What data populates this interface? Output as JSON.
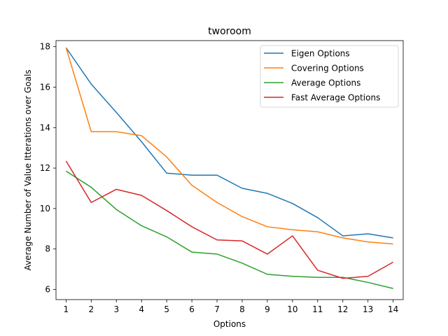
{
  "chart_data": {
    "type": "line",
    "title": "tworoom",
    "xlabel": "Options",
    "ylabel": "Average Number of Value Itterations over Goals",
    "x": [
      1,
      2,
      3,
      4,
      5,
      6,
      7,
      8,
      9,
      10,
      11,
      12,
      13,
      14
    ],
    "xlim": [
      0.6,
      14.4
    ],
    "ylim": [
      5.5,
      18.3
    ],
    "xticks": [
      1,
      2,
      3,
      4,
      5,
      6,
      7,
      8,
      9,
      10,
      11,
      12,
      13,
      14
    ],
    "yticks": [
      6,
      8,
      10,
      12,
      14,
      16,
      18
    ],
    "grid": false,
    "legend_position": "top-right",
    "series": [
      {
        "name": "Eigen Options",
        "color": "#1f77b4",
        "values": [
          17.95,
          16.15,
          14.75,
          13.3,
          11.75,
          11.65,
          11.65,
          11.0,
          10.75,
          10.25,
          9.55,
          8.65,
          8.75,
          8.55
        ]
      },
      {
        "name": "Covering Options",
        "color": "#ff7f0e",
        "values": [
          17.95,
          13.8,
          13.8,
          13.6,
          12.55,
          11.15,
          10.3,
          9.6,
          9.1,
          8.95,
          8.85,
          8.55,
          8.35,
          8.25
        ]
      },
      {
        "name": "Average Options",
        "color": "#2ca02c",
        "values": [
          11.85,
          11.05,
          9.95,
          9.15,
          8.6,
          7.85,
          7.75,
          7.3,
          6.75,
          6.65,
          6.6,
          6.6,
          6.35,
          6.05
        ]
      },
      {
        "name": "Fast Average Options",
        "color": "#d62728",
        "values": [
          12.35,
          10.3,
          10.95,
          10.65,
          9.9,
          9.1,
          8.45,
          8.4,
          7.75,
          8.65,
          6.95,
          6.55,
          6.65,
          7.35
        ]
      }
    ]
  }
}
